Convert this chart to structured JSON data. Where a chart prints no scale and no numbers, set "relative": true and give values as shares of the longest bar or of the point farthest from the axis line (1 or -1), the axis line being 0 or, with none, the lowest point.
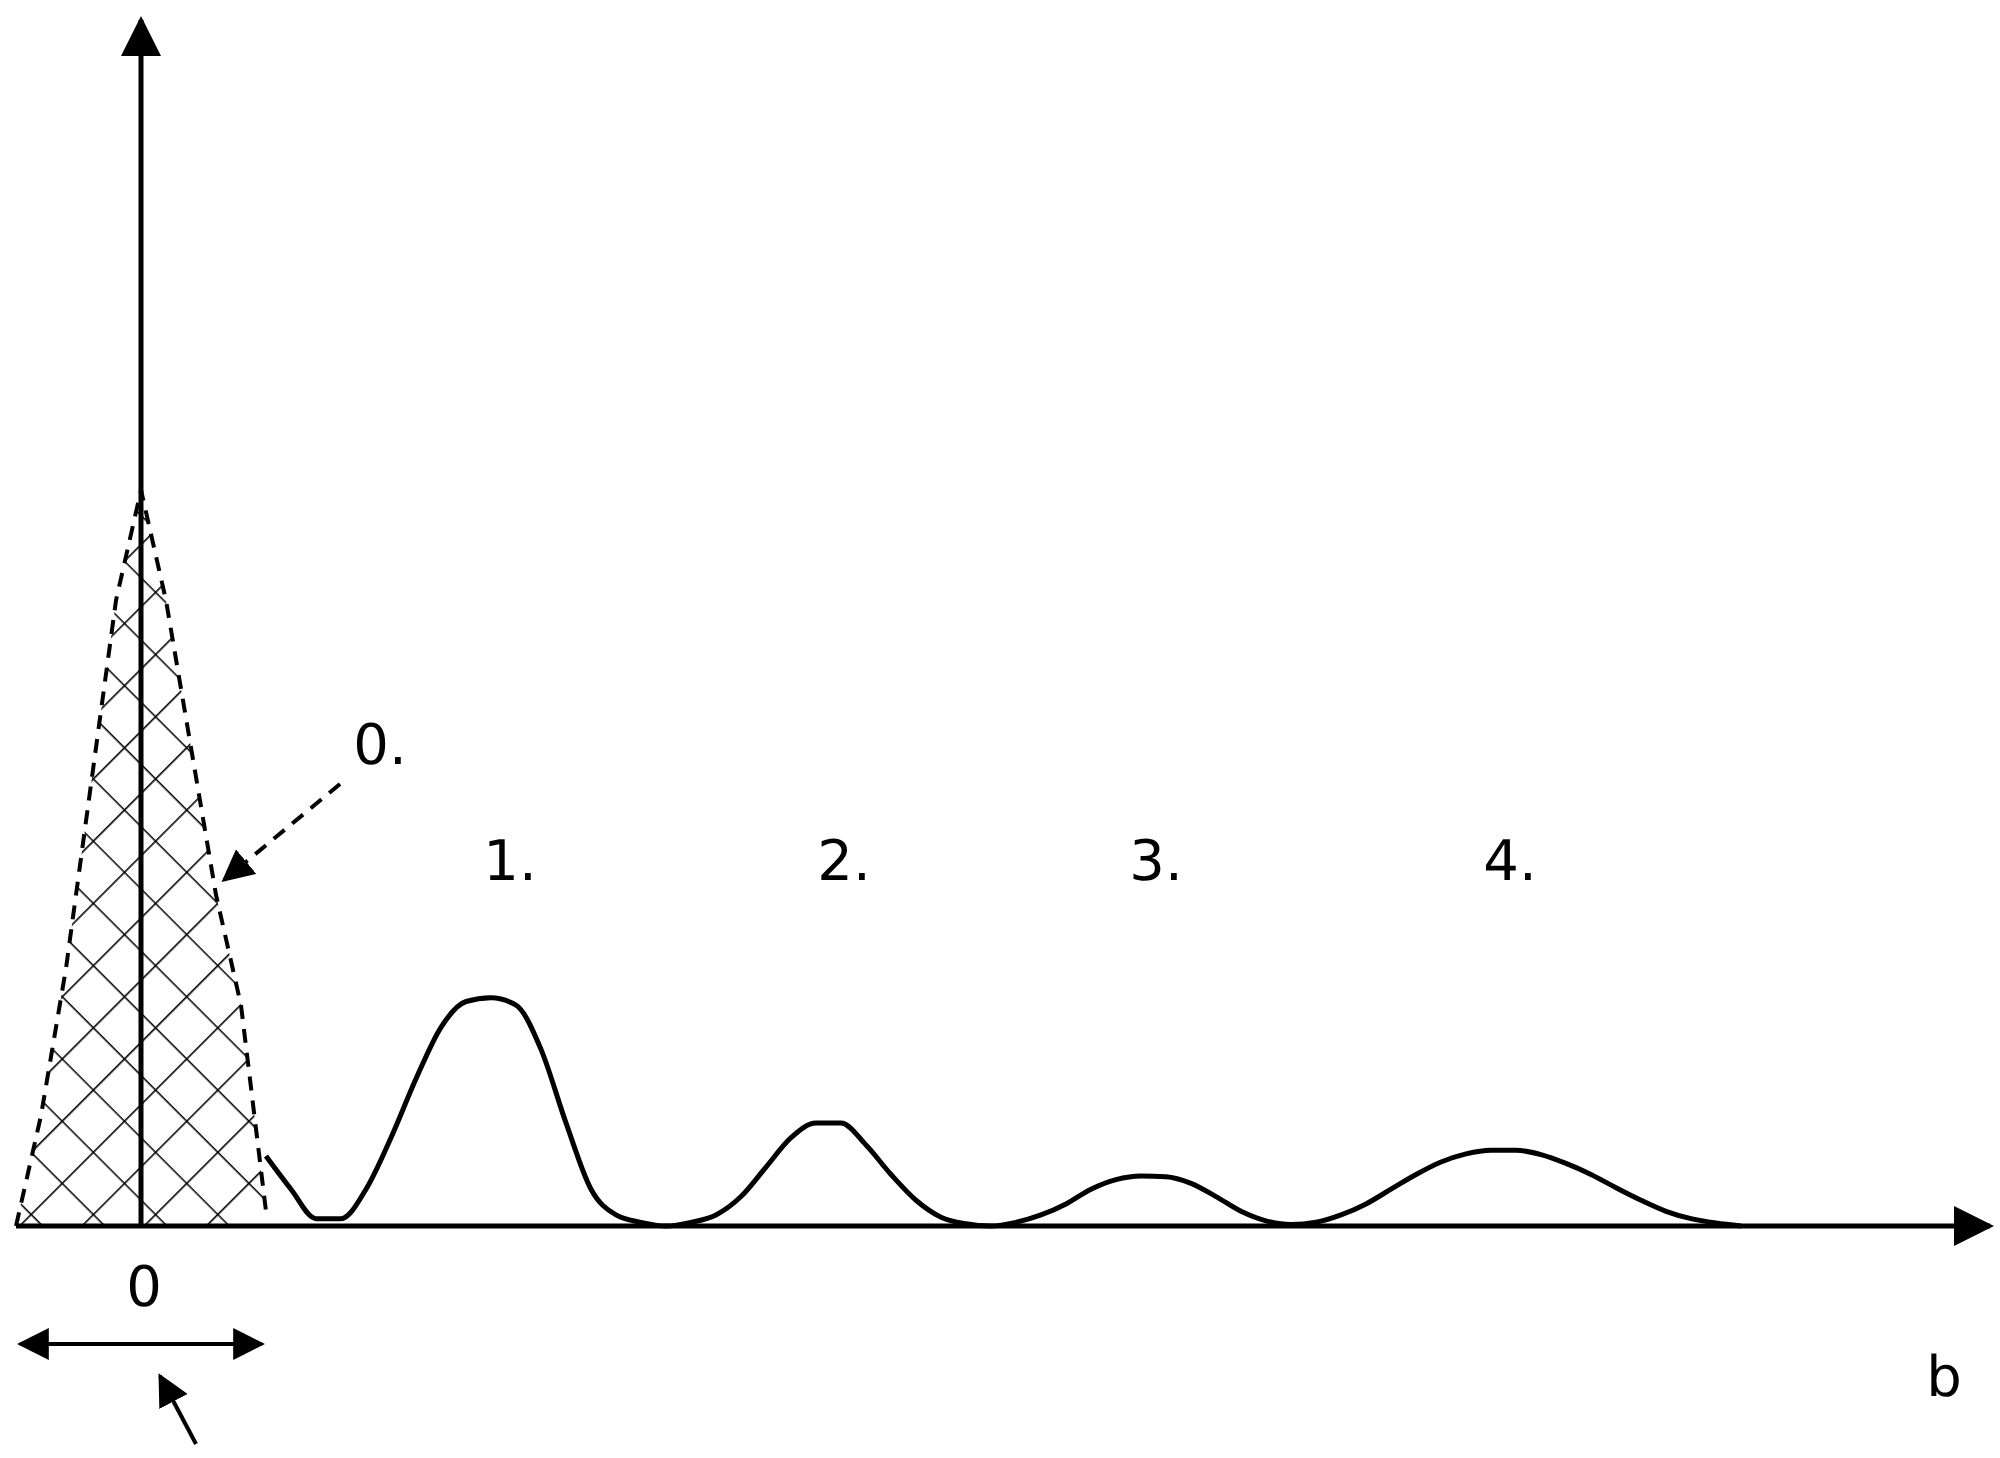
{
  "chart_data": {
    "type": "line",
    "relative": true,
    "xlabel": "b",
    "categories": [
      null,
      null,
      null,
      null,
      null,
      null,
      null,
      null,
      null,
      null,
      null,
      null,
      null,
      null,
      null,
      null,
      null,
      null,
      null,
      null,
      null,
      null,
      null,
      null,
      null,
      null,
      null,
      null,
      null,
      null,
      null,
      null,
      null,
      null,
      null,
      null,
      null,
      null,
      null,
      null,
      null,
      null,
      null,
      null,
      null,
      null,
      null,
      null,
      null,
      null,
      null,
      null,
      null,
      null,
      null,
      null,
      null,
      null,
      null,
      null,
      null,
      null,
      null,
      null,
      null,
      null,
      null,
      null,
      null,
      null,
      null,
      null,
      null,
      null,
      null,
      null,
      null,
      null,
      null
    ],
    "series": [
      {
        "type": "area",
        "color": "#000000",
        "line_style": "dashed",
        "values": [
          0,
          0.15,
          0.35,
          0.6,
          0.85,
          1,
          0.85,
          0.65,
          0.45,
          0.3,
          0.02,
          null,
          null,
          null,
          null,
          null,
          null,
          null,
          null,
          null,
          null,
          null,
          null,
          null,
          null,
          null,
          null,
          null,
          null,
          null,
          null,
          null,
          null,
          null,
          null,
          null,
          null,
          null,
          null,
          null,
          null,
          null,
          null,
          null,
          null,
          null,
          null,
          null,
          null,
          null,
          null,
          null,
          null,
          null,
          null,
          null,
          null,
          null,
          null,
          null,
          null,
          null,
          null,
          null,
          null,
          null,
          null,
          null,
          null,
          null,
          null,
          null,
          null,
          null,
          null,
          null,
          null,
          null,
          null
        ]
      },
      {
        "color": "#000000",
        "line_style": "solid",
        "values": [
          null,
          null,
          null,
          null,
          null,
          null,
          null,
          null,
          null,
          null,
          0.095,
          0.05,
          0.01,
          0.01,
          0.05,
          0.12,
          0.2,
          0.27,
          0.305,
          0.31,
          0.3,
          0.24,
          0.14,
          0.05,
          0.015,
          0.005,
          0,
          0.005,
          0.015,
          0.04,
          0.08,
          0.12,
          0.14,
          0.14,
          0.11,
          0.07,
          0.035,
          0.012,
          0.003,
          0,
          0.005,
          0.015,
          0.03,
          0.05,
          0.063,
          0.068,
          0.067,
          0.058,
          0.04,
          0.02,
          0.007,
          0.002,
          0.005,
          0.015,
          0.03,
          0.05,
          0.07,
          0.087,
          0.098,
          0.103,
          0.103,
          0.097,
          0.085,
          0.07,
          0.052,
          0.035,
          0.02,
          0.01,
          0.004,
          0,
          null,
          null,
          null,
          null,
          null,
          null,
          null,
          null,
          null
        ]
      }
    ],
    "annotations": [
      "0.",
      "1.",
      "2.",
      "3.",
      "4.",
      "0"
    ]
  }
}
